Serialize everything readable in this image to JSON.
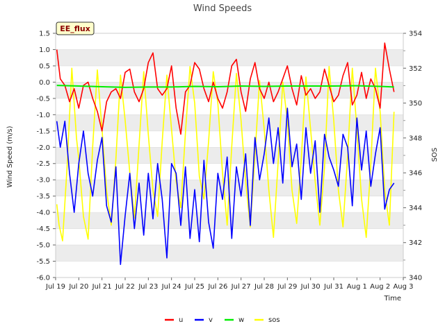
{
  "chart_data": {
    "type": "line",
    "title": "Wind Speeds",
    "badge": "EE_flux",
    "xlabel": "Time",
    "ylabel": "Wind Speed (m/s)",
    "y2label": "SOS",
    "x_ticks": [
      "Jul 19",
      "Jul 20",
      "Jul 21",
      "Jul 22",
      "Jul 23",
      "Jul 24",
      "Jul 25",
      "Jul 26",
      "Jul 27",
      "Jul 28",
      "Jul 29",
      "Jul 30",
      "Jul 31",
      "Aug 1",
      "Aug 2",
      "Aug 3"
    ],
    "xlim": [
      0,
      15
    ],
    "ylim": [
      -6.0,
      1.5
    ],
    "y_ticks": [
      "1.5",
      "1.0",
      "0.5",
      "0.0",
      "-0.5",
      "-1.0",
      "-1.5",
      "-2.0",
      "-2.5",
      "-3.0",
      "-3.5",
      "-4.0",
      "-4.5",
      "-5.0",
      "-5.5",
      "-6.0"
    ],
    "y2lim": [
      340,
      354
    ],
    "y2_ticks": [
      "354",
      "352",
      "350",
      "348",
      "346",
      "344",
      "342",
      "340"
    ],
    "legend_position": "bottom",
    "series": [
      {
        "name": "u",
        "color": "#ff0000",
        "axis": "left",
        "x": [
          0.05,
          0.2,
          0.4,
          0.6,
          0.8,
          1.0,
          1.2,
          1.4,
          1.6,
          1.8,
          2.0,
          2.2,
          2.4,
          2.6,
          2.8,
          3.0,
          3.2,
          3.4,
          3.6,
          3.8,
          4.0,
          4.2,
          4.4,
          4.6,
          4.8,
          5.0,
          5.2,
          5.4,
          5.6,
          5.8,
          6.0,
          6.2,
          6.4,
          6.6,
          6.8,
          7.0,
          7.2,
          7.4,
          7.6,
          7.8,
          8.0,
          8.2,
          8.4,
          8.6,
          8.8,
          9.0,
          9.2,
          9.4,
          9.6,
          9.8,
          10.0,
          10.2,
          10.4,
          10.6,
          10.8,
          11.0,
          11.2,
          11.4,
          11.6,
          11.8,
          12.0,
          12.2,
          12.4,
          12.6,
          12.8,
          13.0,
          13.2,
          13.4,
          13.6,
          13.8,
          14.0,
          14.2,
          14.4,
          14.6
        ],
        "y": [
          1.0,
          0.1,
          -0.1,
          -0.6,
          -0.2,
          -0.8,
          -0.1,
          0.0,
          -0.5,
          -0.9,
          -1.5,
          -0.6,
          -0.3,
          -0.2,
          -0.5,
          0.3,
          0.4,
          -0.3,
          -0.6,
          -0.2,
          0.6,
          0.9,
          -0.2,
          -0.4,
          -0.2,
          0.5,
          -0.8,
          -1.6,
          -0.3,
          -0.1,
          0.6,
          0.4,
          -0.2,
          -0.6,
          0.0,
          -0.5,
          -0.8,
          -0.3,
          0.5,
          0.7,
          -0.3,
          -0.9,
          0.1,
          0.6,
          -0.2,
          -0.5,
          0.0,
          -0.6,
          -0.3,
          0.1,
          0.5,
          -0.2,
          -0.7,
          0.2,
          -0.4,
          -0.2,
          -0.5,
          -0.3,
          0.4,
          -0.1,
          -0.6,
          -0.4,
          0.2,
          0.6,
          -0.7,
          -0.4,
          0.3,
          -0.5,
          0.1,
          -0.2,
          -0.8,
          1.2,
          0.4,
          -0.3
        ]
      },
      {
        "name": "v",
        "color": "#0000ff",
        "axis": "left",
        "x": [
          0.05,
          0.2,
          0.4,
          0.6,
          0.8,
          1.0,
          1.2,
          1.4,
          1.6,
          1.8,
          2.0,
          2.2,
          2.4,
          2.6,
          2.8,
          3.0,
          3.2,
          3.4,
          3.6,
          3.8,
          4.0,
          4.2,
          4.4,
          4.6,
          4.8,
          5.0,
          5.2,
          5.4,
          5.6,
          5.8,
          6.0,
          6.2,
          6.4,
          6.6,
          6.8,
          7.0,
          7.2,
          7.4,
          7.6,
          7.8,
          8.0,
          8.2,
          8.4,
          8.6,
          8.8,
          9.0,
          9.2,
          9.4,
          9.6,
          9.8,
          10.0,
          10.2,
          10.4,
          10.6,
          10.8,
          11.0,
          11.2,
          11.4,
          11.6,
          11.8,
          12.0,
          12.2,
          12.4,
          12.6,
          12.8,
          13.0,
          13.2,
          13.4,
          13.6,
          13.8,
          14.0,
          14.2,
          14.4,
          14.6
        ],
        "y": [
          -1.2,
          -2.0,
          -1.2,
          -2.8,
          -4.0,
          -2.5,
          -1.5,
          -2.8,
          -3.5,
          -2.4,
          -1.7,
          -3.8,
          -4.3,
          -2.6,
          -5.6,
          -4.1,
          -2.8,
          -4.5,
          -3.1,
          -4.7,
          -2.8,
          -4.2,
          -2.5,
          -3.6,
          -5.4,
          -2.5,
          -2.8,
          -4.4,
          -2.6,
          -4.8,
          -3.3,
          -4.9,
          -2.4,
          -4.3,
          -5.1,
          -2.8,
          -3.6,
          -2.3,
          -4.8,
          -2.6,
          -3.5,
          -2.2,
          -4.4,
          -1.7,
          -3.0,
          -2.2,
          -1.1,
          -2.5,
          -1.4,
          -3.1,
          -0.8,
          -2.6,
          -1.9,
          -3.6,
          -1.4,
          -2.8,
          -1.8,
          -4.0,
          -1.6,
          -2.3,
          -2.7,
          -3.2,
          -1.6,
          -2.0,
          -3.8,
          -1.1,
          -2.7,
          -1.5,
          -3.2,
          -2.2,
          -1.4,
          -3.9,
          -3.3,
          -3.1
        ]
      },
      {
        "name": "w",
        "color": "#00ee00",
        "axis": "left",
        "x": [
          0.05,
          1.0,
          2.0,
          3.0,
          4.0,
          5.0,
          6.0,
          7.0,
          8.0,
          9.0,
          10.0,
          11.0,
          12.0,
          13.0,
          14.0,
          14.6
        ],
        "y": [
          -0.1,
          -0.12,
          -0.14,
          -0.16,
          -0.15,
          -0.15,
          -0.13,
          -0.14,
          -0.12,
          -0.13,
          -0.12,
          -0.12,
          -0.12,
          -0.11,
          -0.13,
          -0.15
        ]
      },
      {
        "name": "sos",
        "color": "#ffff00",
        "axis": "right",
        "x": [
          0.05,
          0.15,
          0.3,
          0.5,
          0.7,
          0.9,
          1.0,
          1.2,
          1.4,
          1.6,
          1.8,
          2.0,
          2.2,
          2.4,
          2.6,
          2.8,
          3.0,
          3.2,
          3.4,
          3.6,
          3.8,
          4.0,
          4.2,
          4.4,
          4.6,
          4.8,
          5.0,
          5.2,
          5.4,
          5.6,
          5.8,
          6.0,
          6.2,
          6.4,
          6.6,
          6.8,
          7.0,
          7.2,
          7.4,
          7.6,
          7.8,
          8.0,
          8.2,
          8.4,
          8.6,
          8.8,
          9.0,
          9.2,
          9.4,
          9.6,
          9.8,
          10.0,
          10.2,
          10.4,
          10.6,
          10.8,
          11.0,
          11.2,
          11.4,
          11.6,
          11.8,
          12.0,
          12.2,
          12.4,
          12.6,
          12.8,
          13.0,
          13.2,
          13.4,
          13.6,
          13.8,
          14.0,
          14.2,
          14.4,
          14.6
        ],
        "y": [
          344.2,
          343.0,
          342.1,
          346.5,
          352.0,
          348.0,
          346.8,
          343.5,
          342.2,
          347.5,
          351.9,
          348.5,
          345.0,
          343.0,
          346.8,
          351.6,
          349.0,
          346.0,
          343.4,
          347.6,
          351.8,
          348.2,
          345.0,
          343.5,
          347.8,
          351.6,
          348.5,
          345.5,
          344.0,
          348.3,
          352.1,
          350.0,
          345.8,
          344.5,
          347.8,
          351.8,
          350.0,
          346.0,
          343.0,
          347.5,
          351.7,
          349.0,
          345.5,
          342.9,
          347.0,
          351.3,
          348.5,
          345.0,
          342.3,
          346.6,
          351.2,
          349.0,
          345.0,
          343.1,
          346.8,
          351.5,
          348.5,
          345.5,
          343.0,
          346.3,
          352.1,
          349.0,
          345.0,
          342.9,
          347.0,
          352.0,
          348.5,
          344.5,
          342.3,
          346.5,
          352.0,
          349.5,
          345.0,
          343.0,
          349.5
        ]
      }
    ]
  }
}
